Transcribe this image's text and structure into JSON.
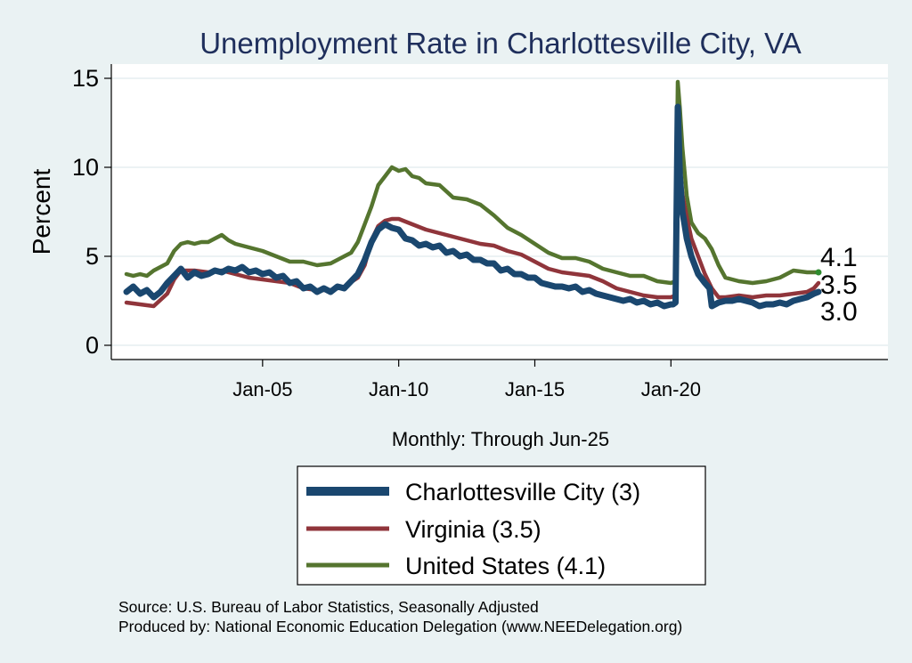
{
  "chart_data": {
    "type": "line",
    "title": "Unemployment Rate in Charlottesville City, VA",
    "ylabel": "Percent",
    "xlabel": "Monthly: Through Jun-25",
    "ylim": [
      0,
      15
    ],
    "yticks": [
      0,
      5,
      10,
      15
    ],
    "xlim": [
      "Jan-00",
      "Jun-25"
    ],
    "xticks": [
      {
        "label": "Jan-05",
        "year": 2005
      },
      {
        "label": "Jan-10",
        "year": 2010
      },
      {
        "label": "Jan-15",
        "year": 2015
      },
      {
        "label": "Jan-20",
        "year": 2020
      }
    ],
    "grid": true,
    "legend_position": "bottom",
    "series": [
      {
        "name": "Charlottesville City",
        "legend_label": "Charlottesville City  (3)",
        "end_label": "3.0",
        "color": "#1a476f",
        "points": [
          [
            2000.0,
            3.0
          ],
          [
            2000.25,
            3.3
          ],
          [
            2000.5,
            2.9
          ],
          [
            2000.75,
            3.1
          ],
          [
            2001.0,
            2.7
          ],
          [
            2001.25,
            3.0
          ],
          [
            2001.5,
            3.5
          ],
          [
            2001.75,
            3.9
          ],
          [
            2002.0,
            4.3
          ],
          [
            2002.25,
            3.8
          ],
          [
            2002.5,
            4.1
          ],
          [
            2002.75,
            3.9
          ],
          [
            2003.0,
            4.0
          ],
          [
            2003.25,
            4.2
          ],
          [
            2003.5,
            4.1
          ],
          [
            2003.75,
            4.3
          ],
          [
            2004.0,
            4.2
          ],
          [
            2004.25,
            4.4
          ],
          [
            2004.5,
            4.1
          ],
          [
            2004.75,
            4.2
          ],
          [
            2005.0,
            4.0
          ],
          [
            2005.25,
            4.1
          ],
          [
            2005.5,
            3.8
          ],
          [
            2005.75,
            3.9
          ],
          [
            2006.0,
            3.5
          ],
          [
            2006.25,
            3.6
          ],
          [
            2006.5,
            3.2
          ],
          [
            2006.75,
            3.3
          ],
          [
            2007.0,
            3.0
          ],
          [
            2007.25,
            3.2
          ],
          [
            2007.5,
            3.0
          ],
          [
            2007.75,
            3.3
          ],
          [
            2008.0,
            3.2
          ],
          [
            2008.25,
            3.6
          ],
          [
            2008.5,
            4.0
          ],
          [
            2008.75,
            4.8
          ],
          [
            2009.0,
            5.8
          ],
          [
            2009.25,
            6.5
          ],
          [
            2009.5,
            6.8
          ],
          [
            2009.75,
            6.6
          ],
          [
            2010.0,
            6.5
          ],
          [
            2010.25,
            6.0
          ],
          [
            2010.5,
            5.9
          ],
          [
            2010.75,
            5.6
          ],
          [
            2011.0,
            5.7
          ],
          [
            2011.25,
            5.5
          ],
          [
            2011.5,
            5.6
          ],
          [
            2011.75,
            5.2
          ],
          [
            2012.0,
            5.3
          ],
          [
            2012.25,
            5.0
          ],
          [
            2012.5,
            5.1
          ],
          [
            2012.75,
            4.8
          ],
          [
            2013.0,
            4.8
          ],
          [
            2013.25,
            4.6
          ],
          [
            2013.5,
            4.6
          ],
          [
            2013.75,
            4.2
          ],
          [
            2014.0,
            4.3
          ],
          [
            2014.25,
            4.0
          ],
          [
            2014.5,
            4.0
          ],
          [
            2014.75,
            3.8
          ],
          [
            2015.0,
            3.8
          ],
          [
            2015.25,
            3.5
          ],
          [
            2015.5,
            3.4
          ],
          [
            2015.75,
            3.3
          ],
          [
            2016.0,
            3.3
          ],
          [
            2016.25,
            3.2
          ],
          [
            2016.5,
            3.3
          ],
          [
            2016.75,
            3.0
          ],
          [
            2017.0,
            3.1
          ],
          [
            2017.25,
            2.9
          ],
          [
            2017.5,
            2.8
          ],
          [
            2017.75,
            2.7
          ],
          [
            2018.0,
            2.6
          ],
          [
            2018.25,
            2.5
          ],
          [
            2018.5,
            2.6
          ],
          [
            2018.75,
            2.4
          ],
          [
            2019.0,
            2.5
          ],
          [
            2019.25,
            2.3
          ],
          [
            2019.5,
            2.4
          ],
          [
            2019.75,
            2.2
          ],
          [
            2020.0,
            2.3
          ],
          [
            2020.08,
            2.3
          ],
          [
            2020.17,
            2.4
          ],
          [
            2020.25,
            13.4
          ],
          [
            2020.33,
            9.5
          ],
          [
            2020.42,
            7.5
          ],
          [
            2020.5,
            6.8
          ],
          [
            2020.58,
            6.0
          ],
          [
            2020.75,
            5.0
          ],
          [
            2021.0,
            4.0
          ],
          [
            2021.25,
            3.5
          ],
          [
            2021.42,
            3.2
          ],
          [
            2021.5,
            2.2
          ],
          [
            2021.75,
            2.4
          ],
          [
            2022.0,
            2.5
          ],
          [
            2022.25,
            2.5
          ],
          [
            2022.5,
            2.6
          ],
          [
            2022.75,
            2.5
          ],
          [
            2023.0,
            2.4
          ],
          [
            2023.25,
            2.2
          ],
          [
            2023.5,
            2.3
          ],
          [
            2023.75,
            2.3
          ],
          [
            2024.0,
            2.4
          ],
          [
            2024.25,
            2.3
          ],
          [
            2024.5,
            2.5
          ],
          [
            2024.75,
            2.6
          ],
          [
            2025.0,
            2.7
          ],
          [
            2025.25,
            2.9
          ],
          [
            2025.42,
            3.0
          ]
        ]
      },
      {
        "name": "Virginia",
        "legend_label": "Virginia (3.5)",
        "end_label": "3.5",
        "color": "#90353b",
        "points": [
          [
            2000.0,
            2.4
          ],
          [
            2000.5,
            2.3
          ],
          [
            2001.0,
            2.2
          ],
          [
            2001.5,
            2.9
          ],
          [
            2001.75,
            3.7
          ],
          [
            2002.0,
            4.2
          ],
          [
            2002.5,
            4.2
          ],
          [
            2003.0,
            4.1
          ],
          [
            2003.5,
            4.2
          ],
          [
            2004.0,
            4.0
          ],
          [
            2004.5,
            3.8
          ],
          [
            2005.0,
            3.7
          ],
          [
            2005.5,
            3.6
          ],
          [
            2006.0,
            3.5
          ],
          [
            2006.5,
            3.2
          ],
          [
            2007.0,
            3.1
          ],
          [
            2007.5,
            3.1
          ],
          [
            2008.0,
            3.3
          ],
          [
            2008.5,
            3.8
          ],
          [
            2008.75,
            4.5
          ],
          [
            2009.0,
            5.9
          ],
          [
            2009.25,
            6.7
          ],
          [
            2009.5,
            7.0
          ],
          [
            2009.75,
            7.1
          ],
          [
            2010.0,
            7.1
          ],
          [
            2010.5,
            6.8
          ],
          [
            2011.0,
            6.5
          ],
          [
            2011.5,
            6.3
          ],
          [
            2012.0,
            6.1
          ],
          [
            2012.5,
            5.9
          ],
          [
            2013.0,
            5.7
          ],
          [
            2013.5,
            5.6
          ],
          [
            2014.0,
            5.3
          ],
          [
            2014.5,
            5.1
          ],
          [
            2015.0,
            4.7
          ],
          [
            2015.5,
            4.3
          ],
          [
            2016.0,
            4.1
          ],
          [
            2016.5,
            4.0
          ],
          [
            2017.0,
            3.9
          ],
          [
            2017.5,
            3.6
          ],
          [
            2018.0,
            3.2
          ],
          [
            2018.5,
            3.0
          ],
          [
            2019.0,
            2.8
          ],
          [
            2019.5,
            2.7
          ],
          [
            2020.0,
            2.7
          ],
          [
            2020.17,
            2.8
          ],
          [
            2020.25,
            11.0
          ],
          [
            2020.33,
            10.0
          ],
          [
            2020.42,
            8.5
          ],
          [
            2020.58,
            7.2
          ],
          [
            2020.75,
            6.0
          ],
          [
            2021.0,
            5.0
          ],
          [
            2021.25,
            4.0
          ],
          [
            2021.5,
            3.2
          ],
          [
            2021.75,
            2.7
          ],
          [
            2022.0,
            2.7
          ],
          [
            2022.5,
            2.8
          ],
          [
            2023.0,
            2.7
          ],
          [
            2023.5,
            2.8
          ],
          [
            2024.0,
            2.8
          ],
          [
            2024.5,
            2.9
          ],
          [
            2025.0,
            3.0
          ],
          [
            2025.25,
            3.2
          ],
          [
            2025.42,
            3.5
          ]
        ]
      },
      {
        "name": "United States",
        "legend_label": "United States (4.1)",
        "end_label": "4.1",
        "color": "#55752f",
        "points": [
          [
            2000.0,
            4.0
          ],
          [
            2000.25,
            3.9
          ],
          [
            2000.5,
            4.0
          ],
          [
            2000.75,
            3.9
          ],
          [
            2001.0,
            4.2
          ],
          [
            2001.25,
            4.4
          ],
          [
            2001.5,
            4.6
          ],
          [
            2001.75,
            5.3
          ],
          [
            2002.0,
            5.7
          ],
          [
            2002.25,
            5.8
          ],
          [
            2002.5,
            5.7
          ],
          [
            2002.75,
            5.8
          ],
          [
            2003.0,
            5.8
          ],
          [
            2003.25,
            6.0
          ],
          [
            2003.5,
            6.2
          ],
          [
            2003.75,
            5.9
          ],
          [
            2004.0,
            5.7
          ],
          [
            2004.5,
            5.5
          ],
          [
            2005.0,
            5.3
          ],
          [
            2005.5,
            5.0
          ],
          [
            2006.0,
            4.7
          ],
          [
            2006.5,
            4.7
          ],
          [
            2007.0,
            4.5
          ],
          [
            2007.5,
            4.6
          ],
          [
            2008.0,
            5.0
          ],
          [
            2008.25,
            5.2
          ],
          [
            2008.5,
            5.8
          ],
          [
            2008.75,
            6.8
          ],
          [
            2009.0,
            7.8
          ],
          [
            2009.25,
            9.0
          ],
          [
            2009.5,
            9.5
          ],
          [
            2009.75,
            10.0
          ],
          [
            2010.0,
            9.8
          ],
          [
            2010.25,
            9.9
          ],
          [
            2010.5,
            9.5
          ],
          [
            2010.75,
            9.4
          ],
          [
            2011.0,
            9.1
          ],
          [
            2011.5,
            9.0
          ],
          [
            2012.0,
            8.3
          ],
          [
            2012.5,
            8.2
          ],
          [
            2013.0,
            7.9
          ],
          [
            2013.5,
            7.3
          ],
          [
            2014.0,
            6.6
          ],
          [
            2014.5,
            6.2
          ],
          [
            2015.0,
            5.7
          ],
          [
            2015.5,
            5.2
          ],
          [
            2016.0,
            4.9
          ],
          [
            2016.5,
            4.9
          ],
          [
            2017.0,
            4.7
          ],
          [
            2017.5,
            4.3
          ],
          [
            2018.0,
            4.1
          ],
          [
            2018.5,
            3.9
          ],
          [
            2019.0,
            3.9
          ],
          [
            2019.5,
            3.6
          ],
          [
            2020.0,
            3.5
          ],
          [
            2020.17,
            3.6
          ],
          [
            2020.25,
            14.8
          ],
          [
            2020.33,
            13.3
          ],
          [
            2020.42,
            11.1
          ],
          [
            2020.58,
            8.4
          ],
          [
            2020.75,
            6.9
          ],
          [
            2021.0,
            6.3
          ],
          [
            2021.25,
            6.0
          ],
          [
            2021.5,
            5.4
          ],
          [
            2021.75,
            4.5
          ],
          [
            2022.0,
            3.8
          ],
          [
            2022.5,
            3.6
          ],
          [
            2023.0,
            3.5
          ],
          [
            2023.5,
            3.6
          ],
          [
            2024.0,
            3.8
          ],
          [
            2024.5,
            4.2
          ],
          [
            2025.0,
            4.1
          ],
          [
            2025.42,
            4.1
          ]
        ]
      }
    ]
  },
  "footer": {
    "source": "Source: U.S. Bureau of Labor Statistics, Seasonally Adjusted",
    "produced_by": "Produced by: National Economic Education Delegation (www.NEEDelegation.org)"
  }
}
